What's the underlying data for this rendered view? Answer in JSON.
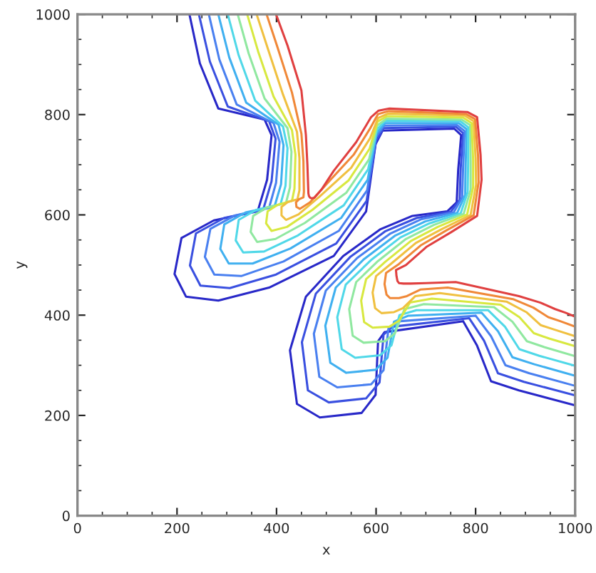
{
  "chart_data": {
    "type": "line",
    "xlabel": "x",
    "ylabel": "y",
    "xlim": [
      0,
      1000
    ],
    "ylim": [
      0,
      1000
    ],
    "xticks": [
      0,
      200,
      400,
      600,
      800,
      1000
    ],
    "yticks": [
      0,
      200,
      400,
      600,
      800,
      1000
    ],
    "grid": false,
    "marker": "none",
    "line_style": "solid",
    "series": [
      {
        "color": "#2828c8",
        "x": [
          225,
          246,
          283,
          376,
          390,
          381,
          362,
          274,
          209,
          195,
          218,
          283,
          385,
          515,
          580,
          599,
          613,
          757,
          771,
          765,
          762,
          743,
          673,
          608,
          534,
          459,
          427,
          441,
          487,
          571,
          599,
          604,
          617,
          775,
          803,
          831,
          887,
          1000
        ],
        "values": [
          1000,
          902,
          812,
          790,
          759,
          670,
          607,
          589,
          554,
          482,
          437,
          429,
          455,
          518,
          607,
          741,
          768,
          772,
          759,
          690,
          625,
          607,
          598,
          571,
          518,
          437,
          330,
          223,
          196,
          205,
          241,
          348,
          366,
          388,
          339,
          268,
          250,
          220
        ]
      },
      {
        "color": "#3a50e0",
        "x": [
          244,
          266,
          302,
          385,
          398,
          390,
          373,
          295,
          238,
          226,
          247,
          306,
          399,
          520,
          581,
          600,
          615,
          760,
          775,
          770,
          768,
          750,
          682,
          618,
          548,
          479,
          451,
          463,
          505,
          580,
          607,
          615,
          633,
          787,
          817,
          845,
          897,
          1000
        ],
        "values": [
          1000,
          906,
          816,
          787,
          752,
          667,
          610,
          594,
          563,
          499,
          459,
          454,
          481,
          543,
          628,
          748,
          773,
          776,
          763,
          693,
          630,
          606,
          594,
          567,
          516,
          443,
          346,
          250,
          226,
          234,
          266,
          361,
          377,
          394,
          349,
          284,
          267,
          240
        ]
      },
      {
        "color": "#4a80f0",
        "x": [
          264,
          285,
          320,
          394,
          406,
          399,
          385,
          317,
          267,
          256,
          275,
          329,
          414,
          525,
          582,
          600,
          616,
          763,
          778,
          775,
          773,
          756,
          690,
          629,
          562,
          499,
          475,
          486,
          522,
          590,
          615,
          625,
          649,
          800,
          831,
          860,
          908,
          1000
        ],
        "values": [
          1000,
          910,
          820,
          783,
          746,
          664,
          614,
          599,
          572,
          516,
          481,
          478,
          507,
          568,
          649,
          756,
          778,
          779,
          767,
          697,
          635,
          605,
          591,
          563,
          514,
          449,
          363,
          277,
          256,
          262,
          290,
          374,
          388,
          399,
          358,
          300,
          284,
          259
        ]
      },
      {
        "color": "#40b0f0",
        "x": [
          283,
          305,
          339,
          404,
          414,
          409,
          396,
          338,
          295,
          287,
          304,
          352,
          428,
          530,
          583,
          601,
          618,
          766,
          782,
          780,
          779,
          763,
          699,
          639,
          576,
          519,
          498,
          508,
          540,
          599,
          623,
          636,
          665,
          812,
          845,
          874,
          918,
          1000
        ],
        "values": [
          1000,
          914,
          824,
          780,
          739,
          661,
          617,
          605,
          581,
          532,
          503,
          503,
          533,
          594,
          670,
          763,
          783,
          783,
          771,
          700,
          640,
          604,
          587,
          559,
          512,
          455,
          379,
          305,
          285,
          291,
          315,
          387,
          399,
          405,
          368,
          316,
          302,
          279
        ]
      },
      {
        "color": "#50d8e8",
        "x": [
          302,
          324,
          357,
          413,
          422,
          418,
          408,
          359,
          324,
          318,
          333,
          375,
          443,
          535,
          584,
          602,
          619,
          769,
          785,
          785,
          784,
          770,
          707,
          649,
          590,
          539,
          522,
          531,
          558,
          608,
          631,
          647,
          681,
          825,
          859,
          888,
          928,
          1000
        ],
        "values": [
          1000,
          918,
          828,
          776,
          733,
          658,
          621,
          610,
          590,
          549,
          525,
          527,
          559,
          619,
          691,
          771,
          788,
          787,
          775,
          703,
          645,
          603,
          583,
          555,
          510,
          461,
          396,
          332,
          315,
          320,
          340,
          400,
          410,
          410,
          377,
          332,
          319,
          299
        ]
      },
      {
        "color": "#90e8a0",
        "x": [
          322,
          344,
          376,
          422,
          430,
          427,
          419,
          381,
          353,
          348,
          361,
          398,
          457,
          540,
          586,
          602,
          621,
          772,
          789,
          790,
          790,
          776,
          716,
          660,
          604,
          560,
          546,
          553,
          575,
          618,
          638,
          657,
          696,
          837,
          874,
          903,
          939,
          1000
        ],
        "values": [
          1000,
          922,
          832,
          773,
          726,
          655,
          624,
          615,
          598,
          566,
          546,
          552,
          584,
          644,
          711,
          778,
          792,
          790,
          779,
          707,
          650,
          602,
          580,
          552,
          508,
          466,
          412,
          359,
          345,
          348,
          364,
          412,
          422,
          416,
          387,
          348,
          336,
          318
        ]
      },
      {
        "color": "#d8e840",
        "x": [
          341,
          363,
          394,
          431,
          438,
          436,
          431,
          402,
          382,
          379,
          390,
          421,
          472,
          545,
          587,
          603,
          622,
          775,
          792,
          795,
          795,
          783,
          724,
          670,
          618,
          580,
          570,
          576,
          593,
          627,
          646,
          668,
          712,
          850,
          888,
          917,
          949,
          1000
        ],
        "values": [
          1000,
          926,
          836,
          769,
          720,
          652,
          628,
          620,
          607,
          583,
          568,
          576,
          610,
          669,
          732,
          786,
          797,
          794,
          783,
          710,
          655,
          601,
          576,
          548,
          506,
          472,
          429,
          386,
          375,
          377,
          389,
          425,
          433,
          421,
          396,
          364,
          353,
          338
        ]
      },
      {
        "color": "#f0c040",
        "x": [
          360,
          383,
          413,
          441,
          446,
          446,
          442,
          423,
          410,
          410,
          419,
          444,
          486,
          550,
          588,
          604,
          624,
          778,
          796,
          800,
          801,
          790,
          733,
          680,
          632,
          600,
          593,
          598,
          611,
          636,
          654,
          679,
          728,
          862,
          902,
          931,
          959,
          1000
        ],
        "values": [
          1000,
          930,
          840,
          766,
          713,
          649,
          631,
          626,
          616,
          599,
          590,
          601,
          636,
          694,
          753,
          793,
          802,
          798,
          787,
          713,
          660,
          600,
          572,
          544,
          504,
          478,
          445,
          414,
          404,
          406,
          414,
          438,
          444,
          427,
          406,
          380,
          371,
          358
        ]
      },
      {
        "color": "#f08838",
        "x": [
          380,
          402,
          431,
          450,
          454,
          455,
          454,
          445,
          439,
          440,
          447,
          467,
          501,
          555,
          589,
          604,
          625,
          781,
          799,
          805,
          806,
          796,
          741,
          691,
          646,
          620,
          617,
          621,
          628,
          646,
          662,
          689,
          744,
          875,
          916,
          946,
          970,
          1000
        ],
        "values": [
          1000,
          934,
          844,
          762,
          707,
          646,
          635,
          631,
          625,
          616,
          612,
          625,
          662,
          720,
          774,
          801,
          807,
          801,
          791,
          717,
          665,
          599,
          569,
          540,
          502,
          484,
          462,
          441,
          434,
          434,
          438,
          451,
          455,
          432,
          415,
          396,
          388,
          377
        ]
      },
      {
        "color": "#e04040",
        "x": [
          399,
          422,
          450,
          459,
          462,
          464,
          465,
          466,
          468,
          471,
          476,
          490,
          515,
          560,
          590,
          605,
          627,
          784,
          803,
          810,
          812,
          803,
          750,
          701,
          660,
          640,
          641,
          643,
          646,
          655,
          670,
          700,
          760,
          887,
          930,
          960,
          980,
          1000
        ],
        "values": [
          1000,
          938,
          848,
          759,
          700,
          643,
          638,
          636,
          634,
          633,
          634,
          650,
          688,
          745,
          795,
          808,
          812,
          805,
          795,
          720,
          670,
          598,
          565,
          536,
          500,
          490,
          478,
          468,
          464,
          463,
          463,
          464,
          466,
          438,
          425,
          412,
          405,
          397
        ]
      }
    ]
  }
}
